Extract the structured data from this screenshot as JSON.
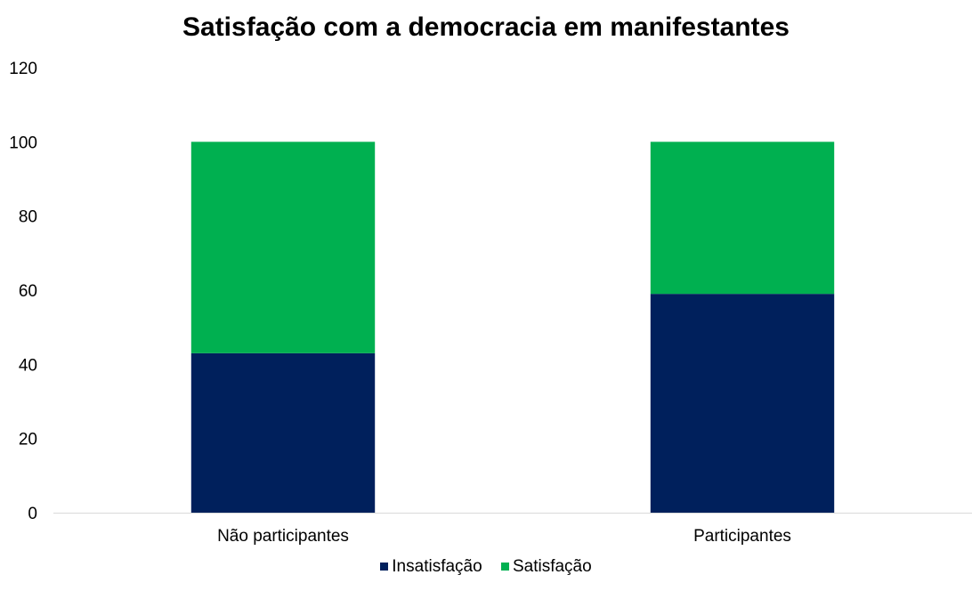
{
  "chart_data": {
    "type": "bar",
    "stacked": true,
    "title": "Satisfação com a democracia em manifestantes",
    "categories": [
      "Não participantes",
      "Participantes"
    ],
    "series": [
      {
        "name": "Insatisfação",
        "values": [
          43,
          59
        ],
        "color": "#00205c"
      },
      {
        "name": "Satisfação",
        "values": [
          57,
          41
        ],
        "color": "#00b050"
      }
    ],
    "ylim": [
      0,
      120
    ],
    "yticks": [
      "0",
      "20",
      "40",
      "60",
      "80",
      "100",
      "120"
    ],
    "grid": false,
    "legend_position": "bottom"
  }
}
